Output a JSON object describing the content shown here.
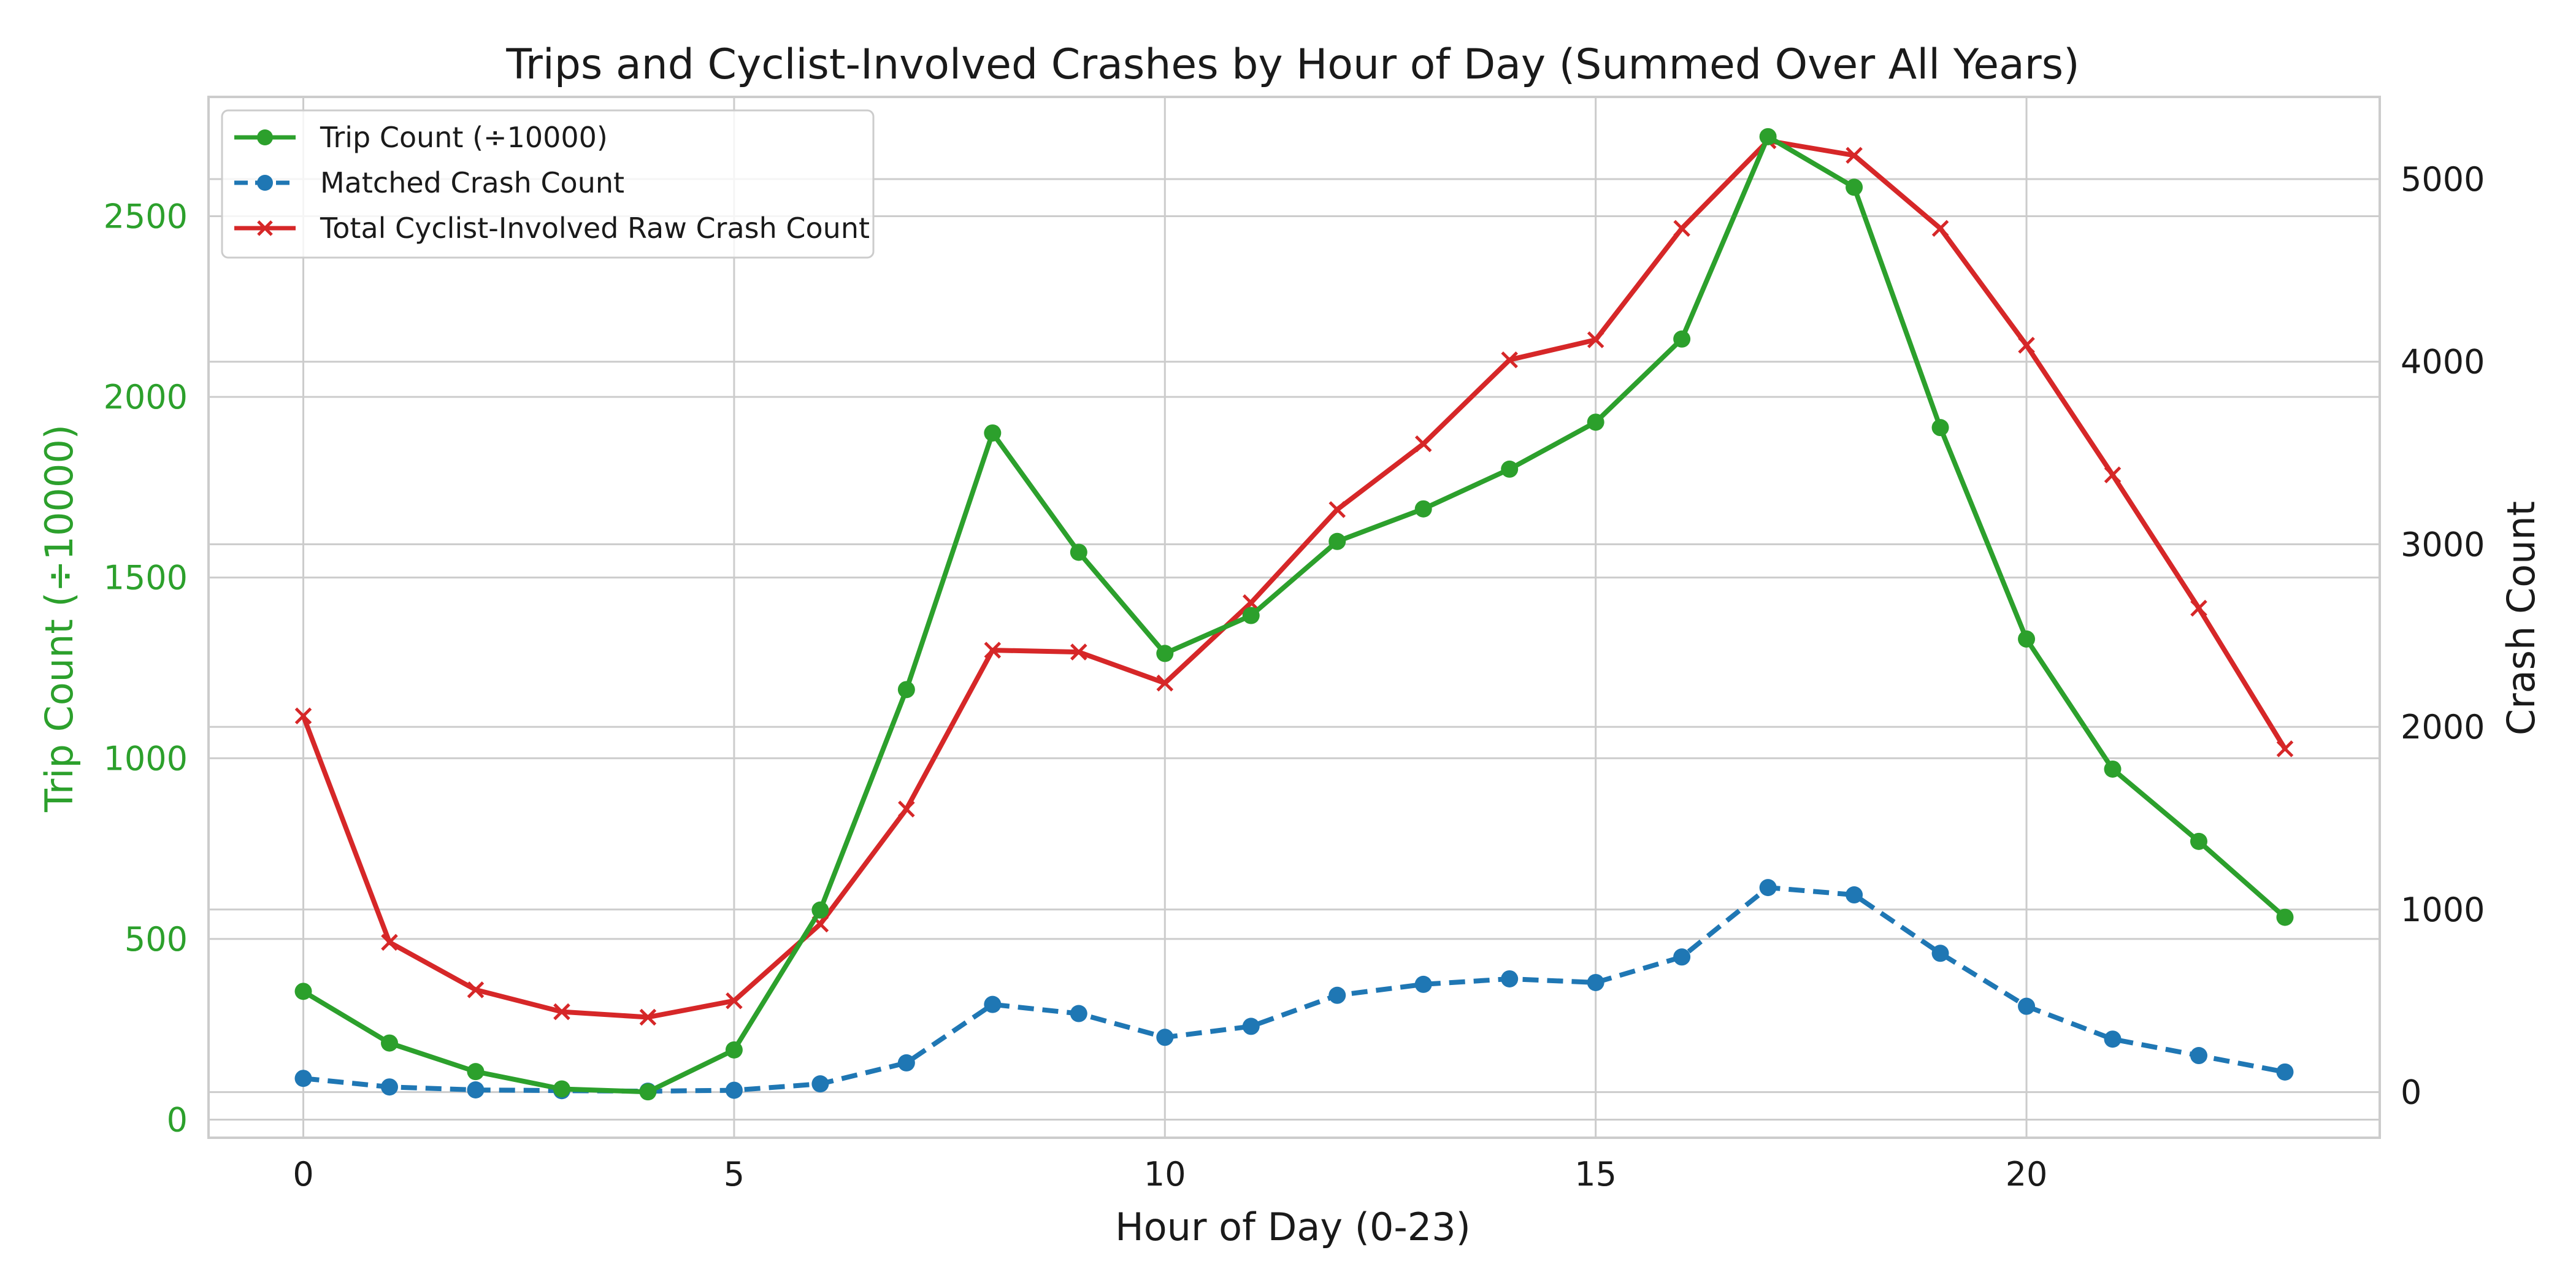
{
  "chart_data": {
    "type": "line",
    "title": "Trips and Cyclist-Involved Crashes by Hour of Day (Summed Over All Years)",
    "xlabel": "Hour of Day (0-23)",
    "ylabel_left": "Trip Count (÷10000)",
    "ylabel_right": "Crash Count",
    "x": [
      0,
      1,
      2,
      3,
      4,
      5,
      6,
      7,
      8,
      9,
      10,
      11,
      12,
      13,
      14,
      15,
      16,
      17,
      18,
      19,
      20,
      21,
      22,
      23
    ],
    "xticks": [
      "0",
      "5",
      "10",
      "15",
      "20"
    ],
    "xtick_values": [
      0,
      5,
      10,
      15,
      20
    ],
    "xlim": [
      -1.1,
      24.1
    ],
    "yticks_left": [
      "0",
      "500",
      "1000",
      "1500",
      "2000",
      "2500"
    ],
    "ytick_values_left": [
      0,
      500,
      1000,
      1500,
      2000,
      2500
    ],
    "ylim_left": [
      -50,
      2830
    ],
    "yticks_right": [
      "0",
      "1000",
      "2000",
      "3000",
      "4000",
      "5000"
    ],
    "ytick_values_right": [
      0,
      1000,
      2000,
      3000,
      4000,
      5000
    ],
    "ylim_right": [
      -250,
      5450
    ],
    "grid": true,
    "legend_position": "top-left",
    "series": [
      {
        "name": "Trip Count (÷10000)",
        "axis": "left",
        "color": "#2ca02c",
        "linestyle": "solid",
        "marker": "circle",
        "values": [
          355,
          212,
          133,
          85,
          77,
          193,
          580,
          1190,
          1900,
          1570,
          1290,
          1395,
          1600,
          1690,
          1800,
          1930,
          2160,
          2720,
          2580,
          1915,
          1330,
          970,
          770,
          560
        ]
      },
      {
        "name": "Matched Crash Count",
        "axis": "right",
        "color": "#1f77b4",
        "linestyle": "dashed",
        "marker": "circle",
        "values": [
          75,
          28,
          12,
          8,
          5,
          10,
          45,
          160,
          480,
          430,
          300,
          360,
          530,
          590,
          620,
          600,
          740,
          1120,
          1080,
          760,
          470,
          290,
          200,
          110
        ]
      },
      {
        "name": "Total Cyclist-Involved Raw Crash Count",
        "axis": "right",
        "color": "#d62728",
        "linestyle": "solid",
        "marker": "x",
        "values": [
          2060,
          820,
          560,
          440,
          410,
          500,
          920,
          1550,
          2420,
          2410,
          2240,
          2680,
          3190,
          3550,
          4010,
          4120,
          4730,
          5210,
          5130,
          4730,
          4090,
          3380,
          2650,
          1880
        ]
      }
    ]
  }
}
